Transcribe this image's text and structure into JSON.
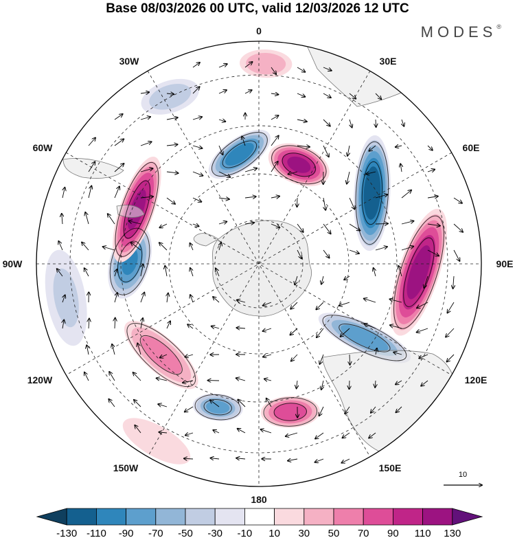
{
  "title": "Base 08/03/2026 00 UTC, valid 12/03/2026 12 UTC",
  "brand": {
    "name": "MODES",
    "mark": "®"
  },
  "longitude_labels": [
    "0",
    "30E",
    "60E",
    "90E",
    "120E",
    "150E",
    "180",
    "150W",
    "120W",
    "90W",
    "60W",
    "30W"
  ],
  "reference_vector": {
    "label": "10"
  },
  "colorbar": {
    "tick_labels": [
      "-130",
      "-110",
      "-90",
      "-70",
      "-50",
      "-30",
      "-10",
      "10",
      "30",
      "50",
      "70",
      "90",
      "110",
      "130"
    ],
    "colors": [
      "#0f3f5e",
      "#14608f",
      "#2f86bb",
      "#5d9fcd",
      "#92b6d7",
      "#c1cde3",
      "#e4e4f1",
      "#ffffff",
      "#fadadf",
      "#f5b1c4",
      "#ee7fab",
      "#de4d98",
      "#c02588",
      "#9c1381",
      "#62117a"
    ]
  },
  "anomalies": [
    {
      "lon": -10,
      "colat": 0.5,
      "value": -100,
      "a": 0.17,
      "b": 0.075,
      "orient": -25
    },
    {
      "lon": 22,
      "colat": 0.48,
      "value": 115,
      "a": 0.15,
      "b": 0.09,
      "orient": 0
    },
    {
      "lon": 58,
      "colat": 0.6,
      "value": -125,
      "a": 0.27,
      "b": 0.085,
      "orient": 35
    },
    {
      "lon": 93,
      "colat": 0.72,
      "value": 120,
      "a": 0.31,
      "b": 0.095,
      "orient": 15
    },
    {
      "lon": 125,
      "colat": 0.58,
      "value": -80,
      "a": 0.24,
      "b": 0.07,
      "orient": 80
    },
    {
      "lon": 168,
      "colat": 0.68,
      "value": 85,
      "a": 0.14,
      "b": 0.075,
      "orient": 10
    },
    {
      "lon": -164,
      "colat": 0.67,
      "value": -75,
      "a": 0.12,
      "b": 0.065,
      "orient": -10
    },
    {
      "lon": -133,
      "colat": 0.6,
      "value": 55,
      "a": 0.23,
      "b": 0.085,
      "orient": -5
    },
    {
      "lon": -89,
      "colat": 0.58,
      "value": -90,
      "a": 0.18,
      "b": 0.095,
      "orient": 15
    },
    {
      "lon": -66,
      "colat": 0.6,
      "value": 115,
      "a": 0.26,
      "b": 0.08,
      "orient": -5
    },
    {
      "lon": -28,
      "colat": 0.85,
      "value": -40,
      "a": 0.15,
      "b": 0.08,
      "orient": 10
    },
    {
      "lon": 2,
      "colat": 0.9,
      "value": 45,
      "a": 0.13,
      "b": 0.07,
      "orient": 0
    },
    {
      "lon": -100,
      "colat": 0.88,
      "value": -30,
      "a": 0.25,
      "b": 0.1,
      "orient": 0
    },
    {
      "lon": -150,
      "colat": 0.92,
      "value": 25,
      "a": 0.2,
      "b": 0.08,
      "orient": 0
    }
  ]
}
